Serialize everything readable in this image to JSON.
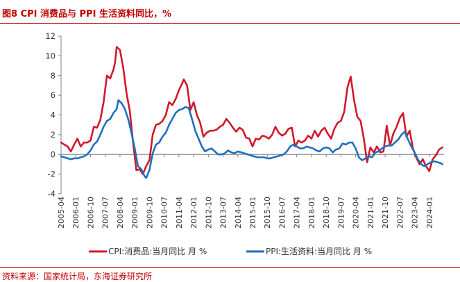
{
  "title": "图8  CPI 消费品与 PPI 生活资料同比，%",
  "source": "资料来源：国家统计局，东海证券研究所",
  "chart_data": {
    "type": "line",
    "title": "",
    "xlabel": "",
    "ylabel": "",
    "ylim": [
      -4,
      12
    ],
    "yticks": [
      -4,
      -2,
      0,
      2,
      4,
      6,
      8,
      10,
      12
    ],
    "xticks": [
      "2005-04",
      "2006-01",
      "2006-10",
      "2007-07",
      "2008-04",
      "2009-01",
      "2009-10",
      "2010-07",
      "2011-04",
      "2012-01",
      "2012-10",
      "2013-07",
      "2014-04",
      "2015-01",
      "2015-10",
      "2016-07",
      "2017-04",
      "2018-01",
      "2018-10",
      "2019-07",
      "2020-04",
      "2021-01",
      "2021-10",
      "2022-07",
      "2023-04",
      "2024-01"
    ],
    "grid": false,
    "legend_position": "bottom",
    "series": [
      {
        "name": "CPI:消费品:当月同比 月 %",
        "color": "#d0182a",
        "points": [
          [
            "2005-04",
            1.2
          ],
          [
            "2005-06",
            1.0
          ],
          [
            "2005-08",
            0.8
          ],
          [
            "2005-10",
            0.3
          ],
          [
            "2005-12",
            1.0
          ],
          [
            "2006-02",
            1.6
          ],
          [
            "2006-04",
            0.8
          ],
          [
            "2006-06",
            1.2
          ],
          [
            "2006-08",
            1.2
          ],
          [
            "2006-10",
            1.4
          ],
          [
            "2006-12",
            2.8
          ],
          [
            "2007-02",
            2.7
          ],
          [
            "2007-04",
            3.5
          ],
          [
            "2007-06",
            5.3
          ],
          [
            "2007-08",
            8.0
          ],
          [
            "2007-10",
            7.7
          ],
          [
            "2007-12",
            8.6
          ],
          [
            "2008-01",
            9.3
          ],
          [
            "2008-02",
            10.9
          ],
          [
            "2008-04",
            10.6
          ],
          [
            "2008-06",
            8.8
          ],
          [
            "2008-08",
            6.2
          ],
          [
            "2008-10",
            4.4
          ],
          [
            "2008-12",
            1.2
          ],
          [
            "2009-02",
            -1.6
          ],
          [
            "2009-04",
            -1.5
          ],
          [
            "2009-06",
            -2.0
          ],
          [
            "2009-08",
            -1.2
          ],
          [
            "2009-10",
            -0.6
          ],
          [
            "2009-12",
            2.0
          ],
          [
            "2010-02",
            3.0
          ],
          [
            "2010-04",
            3.1
          ],
          [
            "2010-06",
            3.4
          ],
          [
            "2010-08",
            4.0
          ],
          [
            "2010-10",
            5.3
          ],
          [
            "2010-12",
            5.0
          ],
          [
            "2011-02",
            5.6
          ],
          [
            "2011-04",
            6.5
          ],
          [
            "2011-06",
            7.2
          ],
          [
            "2011-07",
            7.6
          ],
          [
            "2011-09",
            7.0
          ],
          [
            "2011-11",
            4.5
          ],
          [
            "2012-01",
            5.3
          ],
          [
            "2012-03",
            4.0
          ],
          [
            "2012-05",
            3.2
          ],
          [
            "2012-07",
            1.8
          ],
          [
            "2012-09",
            2.2
          ],
          [
            "2012-11",
            2.4
          ],
          [
            "2013-01",
            2.4
          ],
          [
            "2013-03",
            2.5
          ],
          [
            "2013-05",
            2.8
          ],
          [
            "2013-07",
            3.0
          ],
          [
            "2013-09",
            3.6
          ],
          [
            "2013-11",
            3.2
          ],
          [
            "2014-01",
            2.7
          ],
          [
            "2014-03",
            2.3
          ],
          [
            "2014-05",
            2.7
          ],
          [
            "2014-07",
            2.5
          ],
          [
            "2014-09",
            1.7
          ],
          [
            "2014-11",
            1.6
          ],
          [
            "2015-01",
            0.8
          ],
          [
            "2015-03",
            1.6
          ],
          [
            "2015-05",
            1.5
          ],
          [
            "2015-07",
            1.9
          ],
          [
            "2015-09",
            1.8
          ],
          [
            "2015-11",
            1.6
          ],
          [
            "2016-01",
            2.0
          ],
          [
            "2016-03",
            2.8
          ],
          [
            "2016-05",
            2.2
          ],
          [
            "2016-07",
            1.9
          ],
          [
            "2016-09",
            2.1
          ],
          [
            "2016-11",
            2.6
          ],
          [
            "2017-01",
            2.7
          ],
          [
            "2017-03",
            0.8
          ],
          [
            "2017-05",
            1.4
          ],
          [
            "2017-07",
            1.2
          ],
          [
            "2017-09",
            1.4
          ],
          [
            "2017-11",
            1.9
          ],
          [
            "2018-01",
            1.6
          ],
          [
            "2018-03",
            2.4
          ],
          [
            "2018-05",
            1.8
          ],
          [
            "2018-07",
            2.4
          ],
          [
            "2018-09",
            2.7
          ],
          [
            "2018-11",
            2.1
          ],
          [
            "2019-01",
            1.6
          ],
          [
            "2019-03",
            2.6
          ],
          [
            "2019-05",
            3.2
          ],
          [
            "2019-07",
            3.4
          ],
          [
            "2019-09",
            4.3
          ],
          [
            "2019-11",
            6.8
          ],
          [
            "2020-01",
            7.9
          ],
          [
            "2020-03",
            5.5
          ],
          [
            "2020-05",
            3.8
          ],
          [
            "2020-07",
            3.4
          ],
          [
            "2020-09",
            1.6
          ],
          [
            "2020-11",
            -0.8
          ],
          [
            "2021-01",
            0.7
          ],
          [
            "2021-03",
            0.2
          ],
          [
            "2021-05",
            0.8
          ],
          [
            "2021-07",
            0.2
          ],
          [
            "2021-09",
            0.3
          ],
          [
            "2021-11",
            2.9
          ],
          [
            "2022-01",
            0.9
          ],
          [
            "2022-03",
            2.1
          ],
          [
            "2022-05",
            2.8
          ],
          [
            "2022-07",
            3.7
          ],
          [
            "2022-09",
            4.2
          ],
          [
            "2022-11",
            1.8
          ],
          [
            "2023-01",
            2.4
          ],
          [
            "2023-03",
            0.6
          ],
          [
            "2023-05",
            -0.3
          ],
          [
            "2023-07",
            -1.0
          ],
          [
            "2023-09",
            -0.5
          ],
          [
            "2023-11",
            -1.2
          ],
          [
            "2024-01",
            -1.7
          ],
          [
            "2024-03",
            -0.5
          ],
          [
            "2024-05",
            -0.1
          ],
          [
            "2024-07",
            0.5
          ],
          [
            "2024-09",
            0.7
          ]
        ]
      },
      {
        "name": "PPI:生活资料:当月同比 月 %",
        "color": "#1f6fbf",
        "points": [
          [
            "2005-04",
            -0.2
          ],
          [
            "2005-06",
            -0.3
          ],
          [
            "2005-08",
            -0.4
          ],
          [
            "2005-10",
            -0.5
          ],
          [
            "2005-12",
            -0.4
          ],
          [
            "2006-02",
            -0.4
          ],
          [
            "2006-04",
            -0.3
          ],
          [
            "2006-06",
            -0.2
          ],
          [
            "2006-08",
            0.0
          ],
          [
            "2006-10",
            0.4
          ],
          [
            "2006-12",
            1.0
          ],
          [
            "2007-02",
            1.3
          ],
          [
            "2007-04",
            2.0
          ],
          [
            "2007-06",
            2.8
          ],
          [
            "2007-08",
            3.4
          ],
          [
            "2007-10",
            3.6
          ],
          [
            "2007-12",
            4.2
          ],
          [
            "2008-02",
            4.6
          ],
          [
            "2008-03",
            5.5
          ],
          [
            "2008-05",
            5.2
          ],
          [
            "2008-07",
            4.6
          ],
          [
            "2008-09",
            3.6
          ],
          [
            "2008-11",
            2.2
          ],
          [
            "2009-01",
            0.6
          ],
          [
            "2009-03",
            -1.2
          ],
          [
            "2009-05",
            -1.5
          ],
          [
            "2009-07",
            -2.2
          ],
          [
            "2009-08",
            -2.4
          ],
          [
            "2009-10",
            -1.6
          ],
          [
            "2009-12",
            0.1
          ],
          [
            "2010-02",
            1.0
          ],
          [
            "2010-04",
            1.2
          ],
          [
            "2010-06",
            1.8
          ],
          [
            "2010-08",
            2.2
          ],
          [
            "2010-10",
            3.0
          ],
          [
            "2010-12",
            3.6
          ],
          [
            "2011-02",
            4.2
          ],
          [
            "2011-04",
            4.5
          ],
          [
            "2011-06",
            4.6
          ],
          [
            "2011-08",
            4.8
          ],
          [
            "2011-10",
            4.7
          ],
          [
            "2011-12",
            3.6
          ],
          [
            "2012-02",
            2.4
          ],
          [
            "2012-04",
            1.6
          ],
          [
            "2012-06",
            0.8
          ],
          [
            "2012-08",
            0.3
          ],
          [
            "2012-10",
            0.5
          ],
          [
            "2012-12",
            0.6
          ],
          [
            "2013-02",
            0.3
          ],
          [
            "2013-04",
            0.0
          ],
          [
            "2013-06",
            0.0
          ],
          [
            "2013-08",
            0.1
          ],
          [
            "2013-10",
            0.4
          ],
          [
            "2013-12",
            0.2
          ],
          [
            "2014-02",
            0.1
          ],
          [
            "2014-04",
            0.3
          ],
          [
            "2014-06",
            0.2
          ],
          [
            "2014-08",
            0.1
          ],
          [
            "2014-10",
            0.0
          ],
          [
            "2014-12",
            -0.1
          ],
          [
            "2015-02",
            -0.2
          ],
          [
            "2015-04",
            -0.3
          ],
          [
            "2015-06",
            -0.3
          ],
          [
            "2015-08",
            -0.3
          ],
          [
            "2015-10",
            -0.4
          ],
          [
            "2015-12",
            -0.4
          ],
          [
            "2016-02",
            -0.3
          ],
          [
            "2016-04",
            -0.2
          ],
          [
            "2016-06",
            -0.1
          ],
          [
            "2016-08",
            0.0
          ],
          [
            "2016-10",
            0.3
          ],
          [
            "2016-12",
            0.8
          ],
          [
            "2017-02",
            1.0
          ],
          [
            "2017-04",
            0.8
          ],
          [
            "2017-06",
            0.6
          ],
          [
            "2017-08",
            0.6
          ],
          [
            "2017-10",
            0.8
          ],
          [
            "2017-12",
            0.7
          ],
          [
            "2018-02",
            0.6
          ],
          [
            "2018-04",
            0.4
          ],
          [
            "2018-06",
            0.3
          ],
          [
            "2018-08",
            0.6
          ],
          [
            "2018-10",
            0.7
          ],
          [
            "2018-12",
            0.6
          ],
          [
            "2019-02",
            0.2
          ],
          [
            "2019-04",
            0.5
          ],
          [
            "2019-06",
            0.6
          ],
          [
            "2019-08",
            1.1
          ],
          [
            "2019-10",
            1.0
          ],
          [
            "2019-12",
            1.2
          ],
          [
            "2020-02",
            1.2
          ],
          [
            "2020-04",
            0.6
          ],
          [
            "2020-06",
            -0.3
          ],
          [
            "2020-08",
            -0.6
          ],
          [
            "2020-10",
            -0.4
          ],
          [
            "2020-12",
            -0.2
          ],
          [
            "2021-02",
            -0.3
          ],
          [
            "2021-04",
            0.2
          ],
          [
            "2021-06",
            0.3
          ],
          [
            "2021-08",
            0.6
          ],
          [
            "2021-10",
            0.8
          ],
          [
            "2021-12",
            0.9
          ],
          [
            "2022-02",
            0.9
          ],
          [
            "2022-04",
            1.2
          ],
          [
            "2022-06",
            1.5
          ],
          [
            "2022-08",
            2.0
          ],
          [
            "2022-10",
            2.3
          ],
          [
            "2022-12",
            1.5
          ],
          [
            "2023-02",
            0.8
          ],
          [
            "2023-04",
            0.2
          ],
          [
            "2023-06",
            -0.5
          ],
          [
            "2023-08",
            -1.0
          ],
          [
            "2023-10",
            -1.2
          ],
          [
            "2023-12",
            -1.0
          ],
          [
            "2024-02",
            -0.8
          ],
          [
            "2024-04",
            -0.7
          ],
          [
            "2024-06",
            -0.8
          ],
          [
            "2024-08",
            -0.9
          ],
          [
            "2024-09",
            -1.0
          ]
        ]
      }
    ]
  }
}
